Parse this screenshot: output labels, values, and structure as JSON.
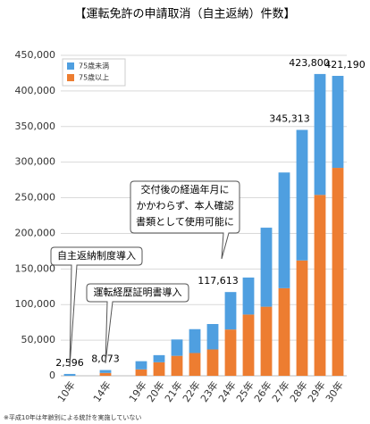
{
  "chart_data": {
    "type": "bar",
    "stacked": true,
    "title": "【運転免許の申請取消（自主返納）件数】",
    "categories": [
      "10年",
      null,
      "14年",
      null,
      "19年",
      "20年",
      "21年",
      "22年",
      "23年",
      "24年",
      "25年",
      "26年",
      "27年",
      "28年",
      "29年",
      "30年"
    ],
    "series": [
      {
        "name": "75歳以上",
        "color": "#ed7d31",
        "values": [
          null,
          null,
          4000,
          null,
          9000,
          19000,
          28000,
          32000,
          37000,
          65000,
          86000,
          97000,
          123000,
          162000,
          254000,
          292000
        ]
      },
      {
        "name": "75歳未満",
        "color": "#4f9fe0",
        "values": [
          2596,
          null,
          4073,
          null,
          11500,
          10000,
          23000,
          33500,
          35700,
          52613,
          52000,
          111000,
          162500,
          183313,
          169800,
          129190
        ]
      }
    ],
    "totals": [
      2596,
      null,
      8073,
      null,
      null,
      null,
      null,
      null,
      null,
      117613,
      null,
      null,
      null,
      345313,
      423800,
      421190
    ],
    "totals_labels": [
      "2,596",
      null,
      "8,073",
      null,
      null,
      null,
      null,
      null,
      null,
      "117,613",
      null,
      null,
      null,
      "345,313",
      "423,800",
      "421,190"
    ],
    "ylim": [
      0,
      450000
    ],
    "yticks": [
      0,
      {
        "value": 50000,
        "label": "50,000"
      },
      {
        "value": 100000,
        "label": "100,000"
      },
      {
        "value": 150000,
        "label": "150,000"
      },
      {
        "value": 200000,
        "label": "200,000"
      },
      {
        "value": 250000,
        "label": "250,000"
      },
      {
        "value": 300000,
        "label": "300,000"
      },
      {
        "value": 350000,
        "label": "350,000"
      },
      {
        "value": 400000,
        "label": "400,000"
      },
      {
        "value": 450000,
        "label": "450,000"
      }
    ],
    "grid": true,
    "legend": "upper-left",
    "annotations": [
      {
        "lines": [
          "自主返納制度導入"
        ]
      },
      {
        "lines": [
          "運転経歴証明書導入"
        ]
      },
      {
        "lines": [
          "交付後の経過年月に",
          "かかわらず、本人確認",
          "書類として使用可能に"
        ]
      }
    ],
    "footnote": "※平成10年は年齢別による統計を実施していない"
  }
}
